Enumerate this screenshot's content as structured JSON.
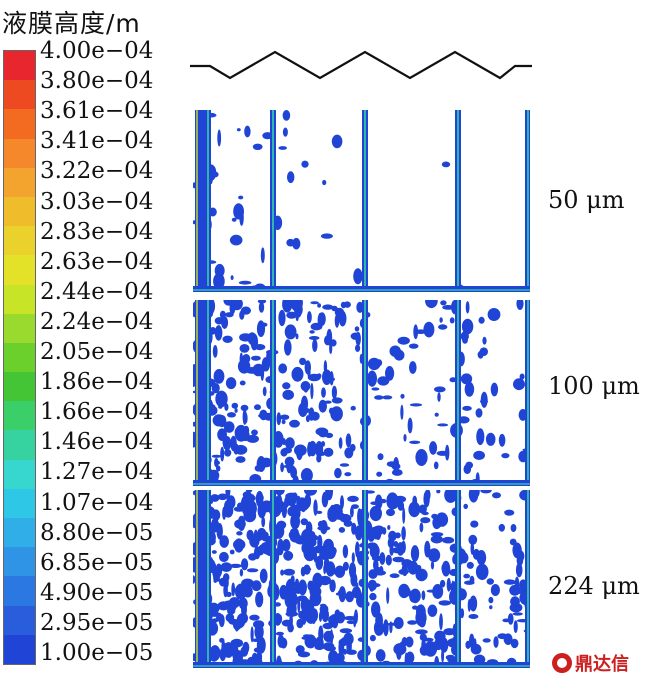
{
  "figure": {
    "title": "液膜高度/m",
    "colorbar": {
      "ticks": [
        "4.00e−04",
        "3.80e−04",
        "3.61e−04",
        "3.41e−04",
        "3.22e−04",
        "3.03e−04",
        "2.83e−04",
        "2.63e−04",
        "2.44e−04",
        "2.24e−04",
        "2.05e−04",
        "1.86e−04",
        "1.66e−04",
        "1.46e−04",
        "1.27e−04",
        "1.07e−04",
        "8.80e−05",
        "6.85e−05",
        "4.90e−05",
        "2.95e−05",
        "1.00e−05"
      ],
      "colors": [
        "#e8262d",
        "#ee4a22",
        "#f26b20",
        "#f4882b",
        "#f2a42e",
        "#efbc2c",
        "#ead12b",
        "#e3e229",
        "#c7e426",
        "#9ad92d",
        "#6bcf2c",
        "#44c535",
        "#3bcf6a",
        "#36d3a1",
        "#37d6cf",
        "#2fc7e6",
        "#30aee8",
        "#2f94e6",
        "#2c78e2",
        "#2a5ddc",
        "#1f44d6"
      ]
    },
    "panels": [
      {
        "label": "50 μm"
      },
      {
        "label": "100 μm"
      },
      {
        "label": "224 μm"
      }
    ],
    "watermark": {
      "text": "鼎达信"
    },
    "colors": {
      "film": "#1f44d6",
      "edge": "#36d3a1",
      "edge_warm": "#c7e426",
      "background": "#ffffff"
    }
  }
}
